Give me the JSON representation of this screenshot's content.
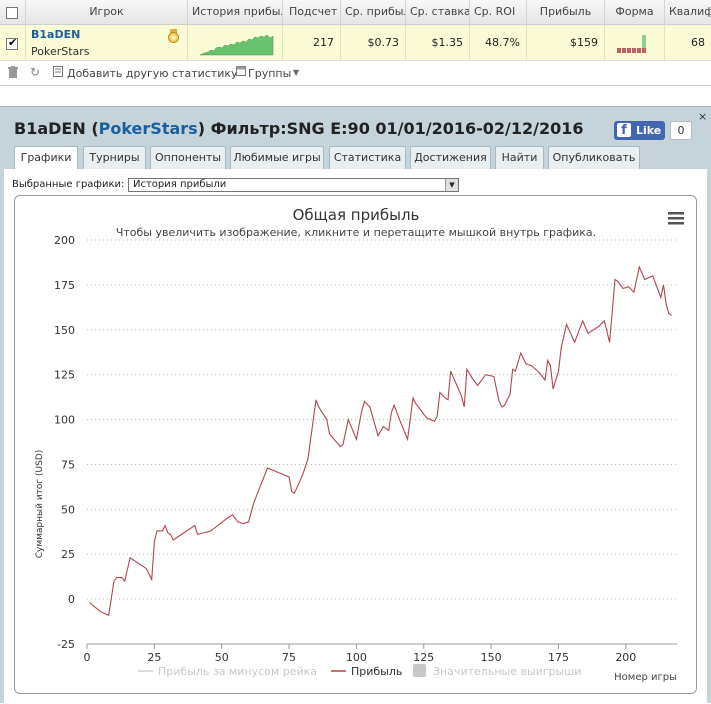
{
  "table": {
    "headers": [
      "Игрок",
      "История прибыли",
      "Подсчет",
      "Ср. прибыль",
      "Ср. ставка",
      "Ср. ROI",
      "Прибыль",
      "Форма",
      "Квалиф"
    ],
    "row": {
      "player": "B1aDEN",
      "site": "PokerStars",
      "count": "217",
      "avg_profit": "$0.73",
      "avg_stake": "$1.35",
      "avg_roi": "48.7%",
      "profit": "$159",
      "qualif": "68"
    }
  },
  "toolbar": {
    "add_stat": "Добавить другую статистику",
    "groups": "Группы"
  },
  "panel": {
    "title_player": "B1aDEN",
    "title_paren_open": "(",
    "title_site": "PokerStars",
    "title_rest": ") Фильтр:SNG E:90 01/01/2016-02/12/2016",
    "fb_like": "Like",
    "fb_count": "0",
    "close": "×",
    "tabs": [
      "Графики",
      "Турниры",
      "Оппоненты",
      "Любимые игры",
      "Статистика",
      "Достижения",
      "Найти",
      "Опубликовать"
    ],
    "select_label": "Выбранные графики:",
    "select_value": "История прибыли"
  },
  "colors": {
    "profit_line": "#b5444a",
    "rake_line": "#cfcfcf",
    "win_marker": "#c8c8c8",
    "accent_link": "#1a5fa0"
  },
  "chart_data": {
    "type": "line",
    "title": "Общая прибыль",
    "subtitle": "Чтобы увеличить изображение, кликните и перетащите мышкой внутрь графика.",
    "xlabel": "Номер игры",
    "ylabel": "Суммарный итог (USD)",
    "xlim": [
      0,
      219
    ],
    "ylim": [
      -25,
      200
    ],
    "xticks": [
      0,
      25,
      50,
      75,
      100,
      125,
      150,
      175,
      200
    ],
    "yticks": [
      -25,
      0,
      25,
      50,
      75,
      100,
      125,
      150,
      175,
      200
    ],
    "grid": true,
    "legend": [
      "Прибыль за минусом рейка",
      "Прибыль",
      "Значительные выигрыши"
    ],
    "series": [
      {
        "name": "Прибыль",
        "x": [
          1,
          5,
          8,
          9,
          10,
          11,
          12,
          13,
          14,
          16,
          22,
          24,
          25,
          26,
          27,
          28,
          29,
          30,
          31,
          32,
          35,
          40,
          41,
          46,
          52,
          53,
          54,
          56,
          58,
          60,
          62,
          67,
          75,
          76,
          77,
          80,
          82,
          85,
          86,
          89,
          90,
          94,
          95,
          97,
          100,
          102,
          103,
          105,
          108,
          110,
          112,
          113,
          114,
          116,
          119,
          121,
          122,
          126,
          129,
          130,
          131,
          133,
          134,
          135,
          137,
          139,
          140,
          141,
          143,
          145,
          148,
          151,
          153,
          154,
          155,
          157,
          158,
          159,
          161,
          163,
          165,
          168,
          170,
          171,
          172,
          173,
          175,
          176,
          178,
          181,
          184,
          186,
          188,
          190,
          192,
          194,
          196,
          197,
          199,
          201,
          203,
          205,
          207,
          210,
          213,
          214,
          215,
          216,
          217
        ],
        "y": [
          -2,
          -7,
          -9,
          0,
          10,
          12,
          12,
          12,
          10,
          23,
          17,
          11,
          32,
          38,
          38,
          38,
          41,
          37,
          36,
          33,
          36,
          41,
          36,
          38,
          45,
          46,
          47,
          43,
          42,
          43,
          54,
          73,
          68,
          60,
          59,
          69,
          78,
          111,
          107,
          100,
          92,
          85,
          86,
          100,
          89,
          105,
          110,
          107,
          91,
          96,
          94,
          104,
          108,
          100,
          89,
          112,
          109,
          101,
          99,
          102,
          115,
          112,
          111,
          127,
          120,
          113,
          107,
          128,
          123,
          119,
          125,
          124,
          110,
          107,
          108,
          114,
          128,
          127,
          137,
          131,
          130,
          126,
          122,
          133,
          130,
          117,
          127,
          140,
          153,
          143,
          155,
          148,
          150,
          152,
          155,
          143,
          178,
          177,
          173,
          174,
          171,
          185,
          178,
          180,
          168,
          175,
          164,
          159,
          158
        ]
      }
    ]
  }
}
